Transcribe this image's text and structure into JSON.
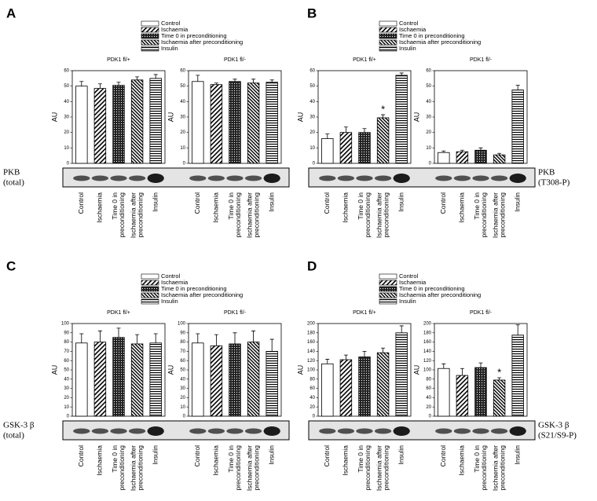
{
  "chart_data": [
    {
      "type": "bar",
      "label": "A",
      "legend": [
        "Control",
        "Ischaemia",
        "Time 0 in preconditioning",
        "Ischaemia after preconditioning",
        "Insulin"
      ],
      "blot_label": [
        "PKB",
        "(total)"
      ],
      "blot_label_side": "left",
      "charts": [
        {
          "title": "PDK1 fl/+",
          "ylabel": "AU",
          "ylim": [
            0,
            60
          ],
          "yticks": [
            0,
            10,
            20,
            30,
            40,
            50,
            60
          ],
          "categories": [
            [
              "Control"
            ],
            [
              "Ischaemia"
            ],
            [
              "Time 0 in",
              "preconditioning"
            ],
            [
              "Ischaemia after",
              "preconditioning"
            ],
            [
              "Insulin"
            ]
          ],
          "values": [
            50,
            48.5,
            50.5,
            54,
            55
          ],
          "errors": [
            3,
            3,
            2,
            2,
            2.5
          ]
        },
        {
          "title": "PDK1 fl/-",
          "ylabel": "AU",
          "ylim": [
            0,
            60
          ],
          "yticks": [
            0,
            10,
            20,
            30,
            40,
            50,
            60
          ],
          "categories": [
            [
              "Control"
            ],
            [
              "Ischaemia"
            ],
            [
              "Time 0 in",
              "preconditioning"
            ],
            [
              "Ischaemia after",
              "preconditioning"
            ],
            [
              "Insulin"
            ]
          ],
          "values": [
            53,
            51,
            53,
            52,
            52.5
          ],
          "errors": [
            4,
            1,
            1.5,
            2.5,
            1.5
          ]
        }
      ]
    },
    {
      "type": "bar",
      "label": "B",
      "legend": [
        "Control",
        "Ischaemia",
        "Time 0 in preconditioning",
        "Ischaemia after preconditioning",
        "Insulin"
      ],
      "blot_label": [
        "PKB",
        "(T308-P)"
      ],
      "blot_label_side": "right",
      "charts": [
        {
          "title": "PDK1 fl/+",
          "ylabel": "AU",
          "ylim": [
            0,
            60
          ],
          "yticks": [
            0,
            10,
            20,
            30,
            40,
            50,
            60
          ],
          "categories": [
            [
              "Control"
            ],
            [
              "Ischaemia"
            ],
            [
              "Time 0 in",
              "preconditioning"
            ],
            [
              "Ischaemia after",
              "preconditioning"
            ],
            [
              "Insulin"
            ]
          ],
          "values": [
            16,
            20,
            20,
            29.5,
            57
          ],
          "errors": [
            3,
            3.5,
            2.5,
            2,
            1.5
          ],
          "significance": [
            null,
            null,
            null,
            "*",
            null
          ]
        },
        {
          "title": "PDK1 fl/-",
          "ylabel": "AU",
          "ylim": [
            0,
            60
          ],
          "yticks": [
            0,
            10,
            20,
            30,
            40,
            50,
            60
          ],
          "categories": [
            [
              "Control"
            ],
            [
              "Ischaemia"
            ],
            [
              "Time 0 in",
              "preconditioning"
            ],
            [
              "Ischaemia after",
              "preconditioning"
            ],
            [
              "Insulin"
            ]
          ],
          "values": [
            7,
            7.5,
            8.5,
            5.5,
            47.5
          ],
          "errors": [
            1,
            1,
            1.5,
            1,
            3
          ]
        }
      ]
    },
    {
      "type": "bar",
      "label": "C",
      "legend": [
        "Control",
        "Ischaemia",
        "Time 0 in preconditioning",
        "Ischaemia after preconditioning",
        "Insulin"
      ],
      "blot_label": [
        "GSK-3  β",
        "(total)"
      ],
      "blot_label_side": "left",
      "charts": [
        {
          "title": "PDK1 fl/+",
          "ylabel": "AU",
          "ylim": [
            0,
            100
          ],
          "yticks": [
            0,
            10,
            20,
            30,
            40,
            50,
            60,
            70,
            80,
            90,
            100
          ],
          "categories": [
            [
              "Control"
            ],
            [
              "Ischaemia"
            ],
            [
              "Time 0 in",
              "preconditioning"
            ],
            [
              "Ischaemia after",
              "preconditioning"
            ],
            [
              "Insulin"
            ]
          ],
          "values": [
            79,
            80,
            85,
            78,
            79
          ],
          "errors": [
            10,
            12,
            10,
            10,
            10
          ]
        },
        {
          "title": "PDK1 fl/-",
          "ylabel": "AU",
          "ylim": [
            0,
            100
          ],
          "yticks": [
            0,
            10,
            20,
            30,
            40,
            50,
            60,
            70,
            80,
            90,
            100
          ],
          "categories": [
            [
              "Control"
            ],
            [
              "Ischaemia"
            ],
            [
              "Time 0 in",
              "preconditioning"
            ],
            [
              "Ischaemia after",
              "preconditioning"
            ],
            [
              "Insulin"
            ]
          ],
          "values": [
            79,
            76,
            78,
            80,
            70
          ],
          "errors": [
            10,
            12,
            12,
            12,
            13
          ]
        }
      ]
    },
    {
      "type": "bar",
      "label": "D",
      "legend": [
        "Control",
        "Ischaemia",
        "Time 0 in preconditioning",
        "Ischaemia after preconditioning",
        "Insulin"
      ],
      "blot_label": [
        "GSK-3  β",
        "(S21/S9-P)"
      ],
      "blot_label_side": "right",
      "charts": [
        {
          "title": "PDK1 fl/+",
          "ylabel": "AU",
          "ylim": [
            0,
            200
          ],
          "yticks": [
            0,
            20,
            40,
            60,
            80,
            100,
            120,
            140,
            160,
            180,
            200
          ],
          "categories": [
            [
              "Control"
            ],
            [
              "Ischaemia"
            ],
            [
              "Time 0 in",
              "preconditioning"
            ],
            [
              "Ischaemia after",
              "preconditioning"
            ],
            [
              "Insulin"
            ]
          ],
          "values": [
            113,
            122,
            128,
            137,
            180
          ],
          "errors": [
            10,
            10,
            12,
            10,
            15
          ]
        },
        {
          "title": "PDK1 fl/-",
          "ylabel": "AU",
          "ylim": [
            0,
            200
          ],
          "yticks": [
            0,
            20,
            40,
            60,
            80,
            100,
            120,
            140,
            160,
            180,
            200
          ],
          "categories": [
            [
              "Control"
            ],
            [
              "Ischaemia"
            ],
            [
              "Time 0 in",
              "preconditioning"
            ],
            [
              "Ischaemia after",
              "preconditioning"
            ],
            [
              "Insulin"
            ]
          ],
          "values": [
            103,
            88,
            105,
            78,
            175
          ],
          "errors": [
            10,
            15,
            10,
            5,
            22
          ],
          "significance": [
            null,
            null,
            null,
            "*",
            null
          ]
        }
      ]
    }
  ]
}
